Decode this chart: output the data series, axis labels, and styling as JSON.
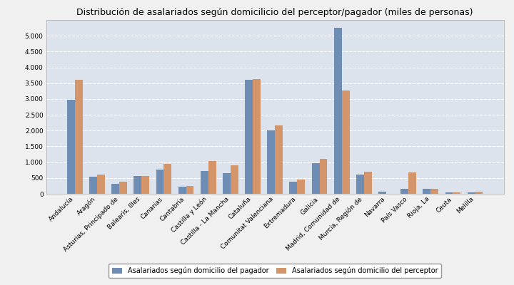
{
  "title": "Distribución de asalariados según domicilicio del perceptor/pagador (miles de personas)",
  "categories": [
    "Andalucía",
    "Aragón",
    "Asturias, Principado de",
    "Balearis, Illes",
    "Canarias",
    "Cantabria",
    "Castilla y León",
    "Castilla - La Mancha",
    "Cataluña",
    "Comunitat Valenciana",
    "Extremadura",
    "Galicia",
    "Madrid, Comunidad de",
    "Murcia, Región de",
    "Navarra",
    "País Vasco",
    "Rioja, La",
    "Ceuta",
    "Melilla"
  ],
  "pagador": [
    2970,
    530,
    305,
    555,
    765,
    225,
    720,
    650,
    3600,
    2010,
    375,
    975,
    5250,
    615,
    75,
    155,
    150,
    40,
    35
  ],
  "perceptor": [
    3600,
    615,
    390,
    570,
    945,
    250,
    1030,
    905,
    3630,
    2175,
    445,
    1100,
    3275,
    690,
    0,
    665,
    155,
    50,
    75
  ],
  "color_pagador": "#6e8db5",
  "color_perceptor": "#d4956a",
  "legend_pagador": "Asalariados según domicilio del pagador",
  "legend_perceptor": "Asalariados según domicilio del perceptor",
  "ylim": [
    0,
    5500
  ],
  "yticks": [
    0,
    500,
    1000,
    1500,
    2000,
    2500,
    3000,
    3500,
    4000,
    4500,
    5000
  ],
  "background_color": "#dce3ec",
  "figure_color": "#f0f0f0",
  "grid_color": "#ffffff",
  "title_fontsize": 9,
  "tick_fontsize": 6.5,
  "legend_fontsize": 7
}
